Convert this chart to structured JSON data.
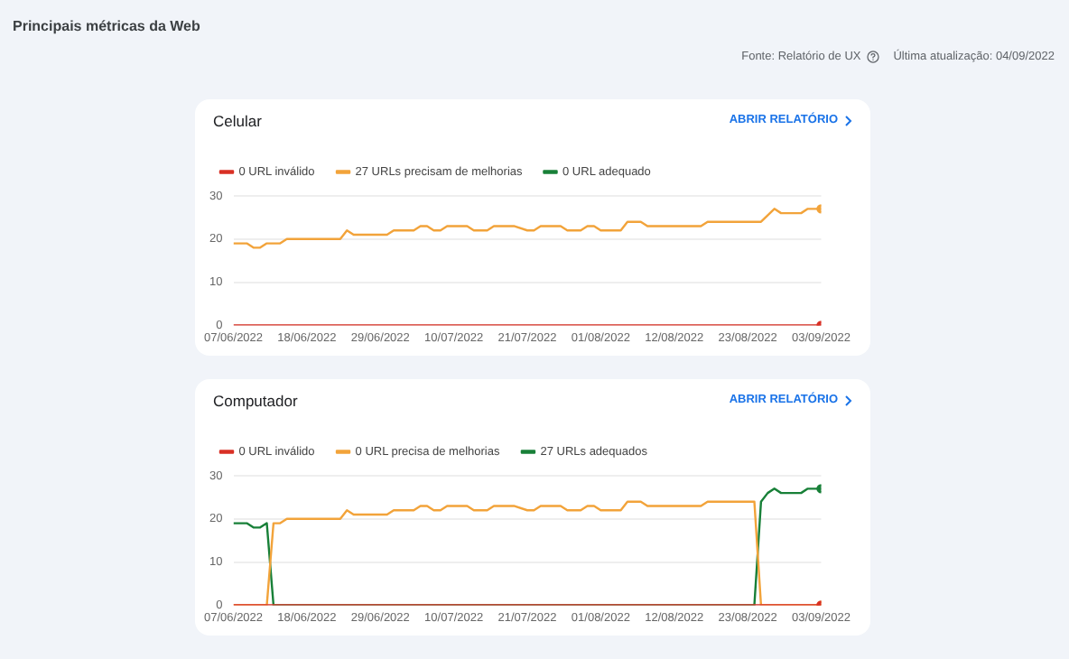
{
  "chart_data": [
    {
      "type": "other",
      "title": "Principais métricas da Web",
      "annotations": [
        "Fonte: Relatório de UX",
        "Última atualização: 04/09/2022"
      ]
    },
    {
      "type": "line",
      "title": "Celular",
      "annotations": [
        "ABRIR RELATÓRIO"
      ],
      "legend": "top left",
      "grid": "y",
      "ylim": [
        0,
        30
      ],
      "yticks": [
        0,
        10,
        20,
        30
      ],
      "xlim": [
        "2022-06-07",
        "2022-09-03"
      ],
      "xticks": [
        {
          "value": "2022-06-07",
          "label": "07/06/2022"
        },
        {
          "value": "2022-06-18",
          "label": "18/06/2022"
        },
        {
          "value": "2022-06-29",
          "label": "29/06/2022"
        },
        {
          "value": "2022-07-10",
          "label": "10/07/2022"
        },
        {
          "value": "2022-07-21",
          "label": "21/07/2022"
        },
        {
          "value": "2022-08-01",
          "label": "01/08/2022"
        },
        {
          "value": "2022-08-12",
          "label": "12/08/2022"
        },
        {
          "value": "2022-08-23",
          "label": "23/08/2022"
        },
        {
          "value": "2022-09-03",
          "label": "03/09/2022"
        }
      ],
      "series": [
        {
          "name": "0 URL inválido",
          "color": "#d93025",
          "x": [
            "2022-06-07",
            "2022-09-03"
          ],
          "values": [
            0,
            0
          ]
        },
        {
          "name": "27 URLs precisam de melhorias",
          "color": "#f2a33a",
          "x": [
            "2022-06-07",
            "2022-06-09",
            "2022-06-10",
            "2022-06-11",
            "2022-06-12",
            "2022-06-14",
            "2022-06-15",
            "2022-06-23",
            "2022-06-24",
            "2022-06-25",
            "2022-06-30",
            "2022-07-01",
            "2022-07-04",
            "2022-07-05",
            "2022-07-06",
            "2022-07-07",
            "2022-07-08",
            "2022-07-09",
            "2022-07-12",
            "2022-07-13",
            "2022-07-15",
            "2022-07-16",
            "2022-07-19",
            "2022-07-21",
            "2022-07-22",
            "2022-07-23",
            "2022-07-26",
            "2022-07-27",
            "2022-07-29",
            "2022-07-30",
            "2022-07-31",
            "2022-08-01",
            "2022-08-04",
            "2022-08-05",
            "2022-08-07",
            "2022-08-08",
            "2022-08-16",
            "2022-08-17",
            "2022-08-25",
            "2022-08-27",
            "2022-08-28",
            "2022-08-31",
            "2022-09-01",
            "2022-09-03"
          ],
          "values": [
            19,
            19,
            18,
            18,
            19,
            19,
            20,
            20,
            22,
            21,
            21,
            22,
            22,
            23,
            23,
            22,
            22,
            23,
            23,
            22,
            22,
            23,
            23,
            22,
            22,
            23,
            23,
            22,
            22,
            23,
            23,
            22,
            22,
            24,
            24,
            23,
            23,
            24,
            24,
            27,
            26,
            26,
            27,
            27
          ]
        },
        {
          "name": "0 URL adequado",
          "color": "#188038"
        }
      ]
    },
    {
      "type": "line",
      "title": "Computador",
      "annotations": [
        "ABRIR RELATÓRIO"
      ],
      "legend": "top left",
      "grid": "y",
      "ylim": [
        0,
        30
      ],
      "yticks": [
        0,
        10,
        20,
        30
      ],
      "xlim": [
        "2022-06-07",
        "2022-09-03"
      ],
      "xticks": [
        {
          "value": "2022-06-07",
          "label": "07/06/2022"
        },
        {
          "value": "2022-06-18",
          "label": "18/06/2022"
        },
        {
          "value": "2022-06-29",
          "label": "29/06/2022"
        },
        {
          "value": "2022-07-10",
          "label": "10/07/2022"
        },
        {
          "value": "2022-07-21",
          "label": "21/07/2022"
        },
        {
          "value": "2022-08-01",
          "label": "01/08/2022"
        },
        {
          "value": "2022-08-12",
          "label": "12/08/2022"
        },
        {
          "value": "2022-08-23",
          "label": "23/08/2022"
        },
        {
          "value": "2022-09-03",
          "label": "03/09/2022"
        }
      ],
      "series": [
        {
          "name": "0 URL inválido",
          "color": "#d93025",
          "x": [
            "2022-06-07",
            "2022-09-03"
          ],
          "values": [
            0,
            0
          ]
        },
        {
          "name": "0 URL precisa de melhorias",
          "color": "#f2a33a",
          "x": [
            "2022-06-07",
            "2022-06-12",
            "2022-06-13",
            "2022-06-14",
            "2022-06-15",
            "2022-06-23",
            "2022-06-24",
            "2022-06-25",
            "2022-06-30",
            "2022-07-01",
            "2022-07-04",
            "2022-07-05",
            "2022-07-06",
            "2022-07-07",
            "2022-07-08",
            "2022-07-09",
            "2022-07-12",
            "2022-07-13",
            "2022-07-15",
            "2022-07-16",
            "2022-07-19",
            "2022-07-21",
            "2022-07-22",
            "2022-07-23",
            "2022-07-26",
            "2022-07-27",
            "2022-07-29",
            "2022-07-30",
            "2022-07-31",
            "2022-08-01",
            "2022-08-04",
            "2022-08-05",
            "2022-08-07",
            "2022-08-08",
            "2022-08-16",
            "2022-08-17",
            "2022-08-24",
            "2022-08-25",
            "2022-09-03"
          ],
          "values": [
            0,
            0,
            19,
            19,
            20,
            20,
            22,
            21,
            21,
            22,
            22,
            23,
            23,
            22,
            22,
            23,
            23,
            22,
            22,
            23,
            23,
            22,
            22,
            23,
            23,
            22,
            22,
            23,
            23,
            22,
            22,
            24,
            24,
            23,
            23,
            24,
            24,
            0,
            0
          ]
        },
        {
          "name": "27 URLs adequados",
          "color": "#188038",
          "x": [
            "2022-06-07",
            "2022-06-09",
            "2022-06-10",
            "2022-06-11",
            "2022-06-12",
            "2022-06-13",
            "2022-08-24",
            "2022-08-25",
            "2022-08-26",
            "2022-08-27",
            "2022-08-28",
            "2022-08-31",
            "2022-09-01",
            "2022-09-03"
          ],
          "values": [
            19,
            19,
            18,
            18,
            19,
            0,
            0,
            24,
            26,
            27,
            26,
            26,
            27,
            27
          ]
        }
      ]
    }
  ]
}
